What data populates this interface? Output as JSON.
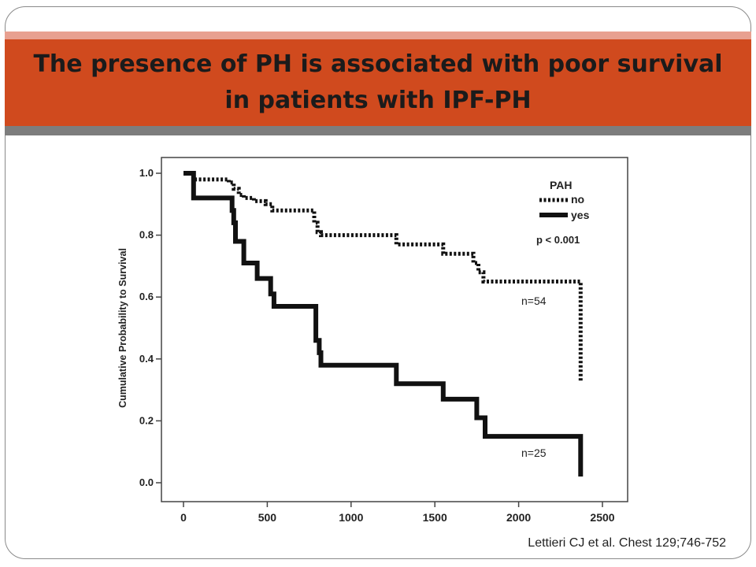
{
  "slide": {
    "title": "The presence of PH is associated with poor survival in patients with IPF-PH",
    "citation": "Lettieri  CJ et al. Chest 129;746-752",
    "colors": {
      "title_bar": "#d04a1e",
      "title_stripe": "#e8a090",
      "title_shadow": "#7d7d7d",
      "frame": "#8a8a8a"
    }
  },
  "chart_data": {
    "type": "line",
    "subtype": "kaplan-meier step",
    "title": "",
    "xlabel": "",
    "ylabel": "Cumulative Probability to Survival",
    "xlim": [
      0,
      2500
    ],
    "ylim": [
      0,
      1.0
    ],
    "x_ticks": [
      "0",
      "500",
      "1000",
      "1500",
      "2000",
      "2500"
    ],
    "y_ticks": [
      "0.0",
      "0.2",
      "0.4",
      "0.6",
      "0.8",
      "1.0"
    ],
    "grid": false,
    "legend": {
      "title": "PAH",
      "placement": "top-right",
      "entries": [
        "no",
        "yes"
      ]
    },
    "annotations": [
      "p < 0.001",
      "n=54",
      "n=25"
    ],
    "series": [
      {
        "name": "no",
        "style": "dotted",
        "color": "#111111",
        "points": [
          [
            0,
            1.0
          ],
          [
            60,
            1.0
          ],
          [
            60,
            0.98
          ],
          [
            270,
            0.98
          ],
          [
            270,
            0.97
          ],
          [
            300,
            0.97
          ],
          [
            300,
            0.95
          ],
          [
            330,
            0.95
          ],
          [
            330,
            0.93
          ],
          [
            360,
            0.93
          ],
          [
            360,
            0.92
          ],
          [
            420,
            0.92
          ],
          [
            420,
            0.91
          ],
          [
            490,
            0.91
          ],
          [
            490,
            0.9
          ],
          [
            530,
            0.9
          ],
          [
            530,
            0.88
          ],
          [
            780,
            0.88
          ],
          [
            780,
            0.84
          ],
          [
            800,
            0.84
          ],
          [
            800,
            0.81
          ],
          [
            820,
            0.81
          ],
          [
            820,
            0.8
          ],
          [
            1270,
            0.8
          ],
          [
            1270,
            0.77
          ],
          [
            1550,
            0.77
          ],
          [
            1550,
            0.74
          ],
          [
            1730,
            0.74
          ],
          [
            1730,
            0.71
          ],
          [
            1760,
            0.71
          ],
          [
            1760,
            0.68
          ],
          [
            1790,
            0.68
          ],
          [
            1790,
            0.65
          ],
          [
            2370,
            0.65
          ],
          [
            2370,
            0.33
          ]
        ]
      },
      {
        "name": "yes",
        "style": "solid",
        "color": "#111111",
        "points": [
          [
            0,
            1.0
          ],
          [
            60,
            1.0
          ],
          [
            60,
            0.92
          ],
          [
            290,
            0.92
          ],
          [
            290,
            0.88
          ],
          [
            300,
            0.88
          ],
          [
            300,
            0.84
          ],
          [
            310,
            0.84
          ],
          [
            310,
            0.78
          ],
          [
            360,
            0.78
          ],
          [
            360,
            0.71
          ],
          [
            440,
            0.71
          ],
          [
            440,
            0.66
          ],
          [
            520,
            0.66
          ],
          [
            520,
            0.61
          ],
          [
            540,
            0.61
          ],
          [
            540,
            0.57
          ],
          [
            790,
            0.57
          ],
          [
            790,
            0.46
          ],
          [
            810,
            0.46
          ],
          [
            810,
            0.42
          ],
          [
            820,
            0.42
          ],
          [
            820,
            0.38
          ],
          [
            1270,
            0.38
          ],
          [
            1270,
            0.32
          ],
          [
            1550,
            0.32
          ],
          [
            1550,
            0.27
          ],
          [
            1750,
            0.27
          ],
          [
            1750,
            0.21
          ],
          [
            1800,
            0.21
          ],
          [
            1800,
            0.15
          ],
          [
            2370,
            0.15
          ],
          [
            2370,
            0.02
          ]
        ]
      }
    ]
  }
}
